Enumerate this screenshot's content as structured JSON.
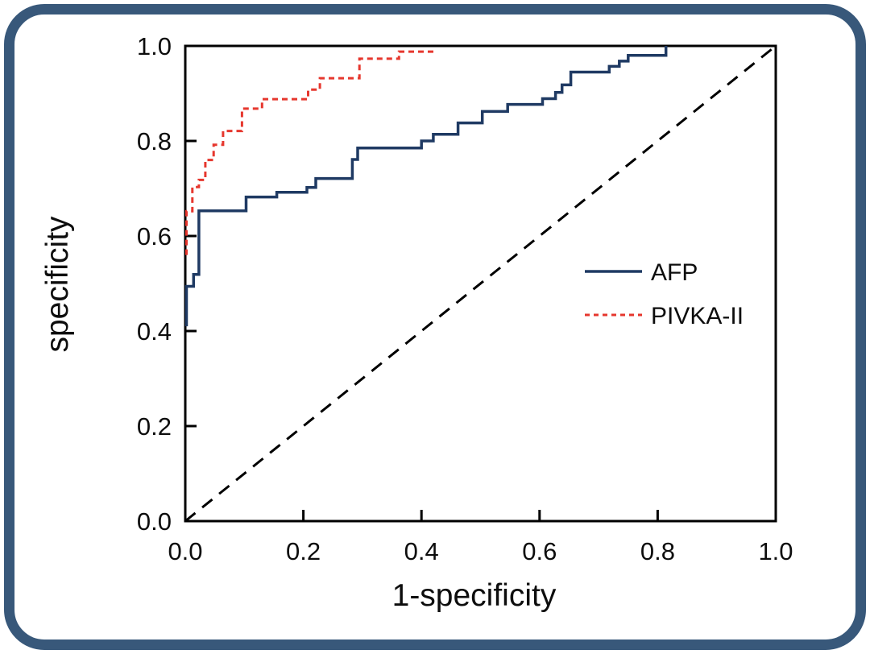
{
  "figure": {
    "frame_color": "#38587a",
    "background": "#ffffff"
  },
  "chart_data": {
    "type": "line",
    "subtype": "roc-step-curves",
    "title": "",
    "xlabel": "1-specificity",
    "ylabel": "specificity",
    "xlim": [
      0.0,
      1.0
    ],
    "ylim": [
      0.0,
      1.0
    ],
    "grid": false,
    "x_ticks": [
      "0.0",
      "0.2",
      "0.4",
      "0.6",
      "0.8",
      "1.0"
    ],
    "y_ticks": [
      "0.0",
      "0.2",
      "0.4",
      "0.6",
      "0.8",
      "1.0"
    ],
    "legend": {
      "position": "center-right-inside",
      "entries": [
        "AFP",
        "PIVKA-II"
      ]
    },
    "series": [
      {
        "name": "AFP",
        "color": "#1f3a63",
        "style": "solid",
        "points": [
          [
            0.002,
            0.41
          ],
          [
            0.002,
            0.494
          ],
          [
            0.014,
            0.494
          ],
          [
            0.014,
            0.519
          ],
          [
            0.023,
            0.519
          ],
          [
            0.023,
            0.653
          ],
          [
            0.103,
            0.653
          ],
          [
            0.103,
            0.682
          ],
          [
            0.155,
            0.682
          ],
          [
            0.155,
            0.692
          ],
          [
            0.206,
            0.692
          ],
          [
            0.206,
            0.702
          ],
          [
            0.221,
            0.702
          ],
          [
            0.221,
            0.721
          ],
          [
            0.283,
            0.721
          ],
          [
            0.283,
            0.761
          ],
          [
            0.292,
            0.761
          ],
          [
            0.292,
            0.785
          ],
          [
            0.4,
            0.785
          ],
          [
            0.4,
            0.8
          ],
          [
            0.42,
            0.8
          ],
          [
            0.42,
            0.814
          ],
          [
            0.462,
            0.814
          ],
          [
            0.462,
            0.838
          ],
          [
            0.503,
            0.838
          ],
          [
            0.503,
            0.862
          ],
          [
            0.546,
            0.862
          ],
          [
            0.546,
            0.877
          ],
          [
            0.605,
            0.877
          ],
          [
            0.605,
            0.889
          ],
          [
            0.627,
            0.889
          ],
          [
            0.627,
            0.902
          ],
          [
            0.638,
            0.902
          ],
          [
            0.638,
            0.918
          ],
          [
            0.653,
            0.918
          ],
          [
            0.653,
            0.945
          ],
          [
            0.718,
            0.945
          ],
          [
            0.718,
            0.957
          ],
          [
            0.735,
            0.957
          ],
          [
            0.735,
            0.968
          ],
          [
            0.75,
            0.968
          ],
          [
            0.75,
            0.98
          ],
          [
            0.814,
            0.98
          ],
          [
            0.814,
            1.0
          ]
        ]
      },
      {
        "name": "PIVKA-II",
        "color": "#e6372e",
        "style": "dashed",
        "points": [
          [
            0.002,
            0.56
          ],
          [
            0.002,
            0.652
          ],
          [
            0.012,
            0.652
          ],
          [
            0.012,
            0.703
          ],
          [
            0.023,
            0.703
          ],
          [
            0.023,
            0.718
          ],
          [
            0.034,
            0.718
          ],
          [
            0.034,
            0.76
          ],
          [
            0.048,
            0.76
          ],
          [
            0.048,
            0.792
          ],
          [
            0.064,
            0.792
          ],
          [
            0.064,
            0.821
          ],
          [
            0.096,
            0.821
          ],
          [
            0.096,
            0.868
          ],
          [
            0.13,
            0.868
          ],
          [
            0.13,
            0.888
          ],
          [
            0.208,
            0.888
          ],
          [
            0.208,
            0.908
          ],
          [
            0.228,
            0.908
          ],
          [
            0.228,
            0.932
          ],
          [
            0.295,
            0.932
          ],
          [
            0.295,
            0.973
          ],
          [
            0.362,
            0.973
          ],
          [
            0.362,
            0.988
          ],
          [
            0.424,
            0.988
          ]
        ]
      },
      {
        "name": "reference",
        "color": "#000000",
        "style": "long-dashed",
        "points": [
          [
            0.0,
            0.0
          ],
          [
            1.0,
            1.0
          ]
        ]
      }
    ]
  }
}
